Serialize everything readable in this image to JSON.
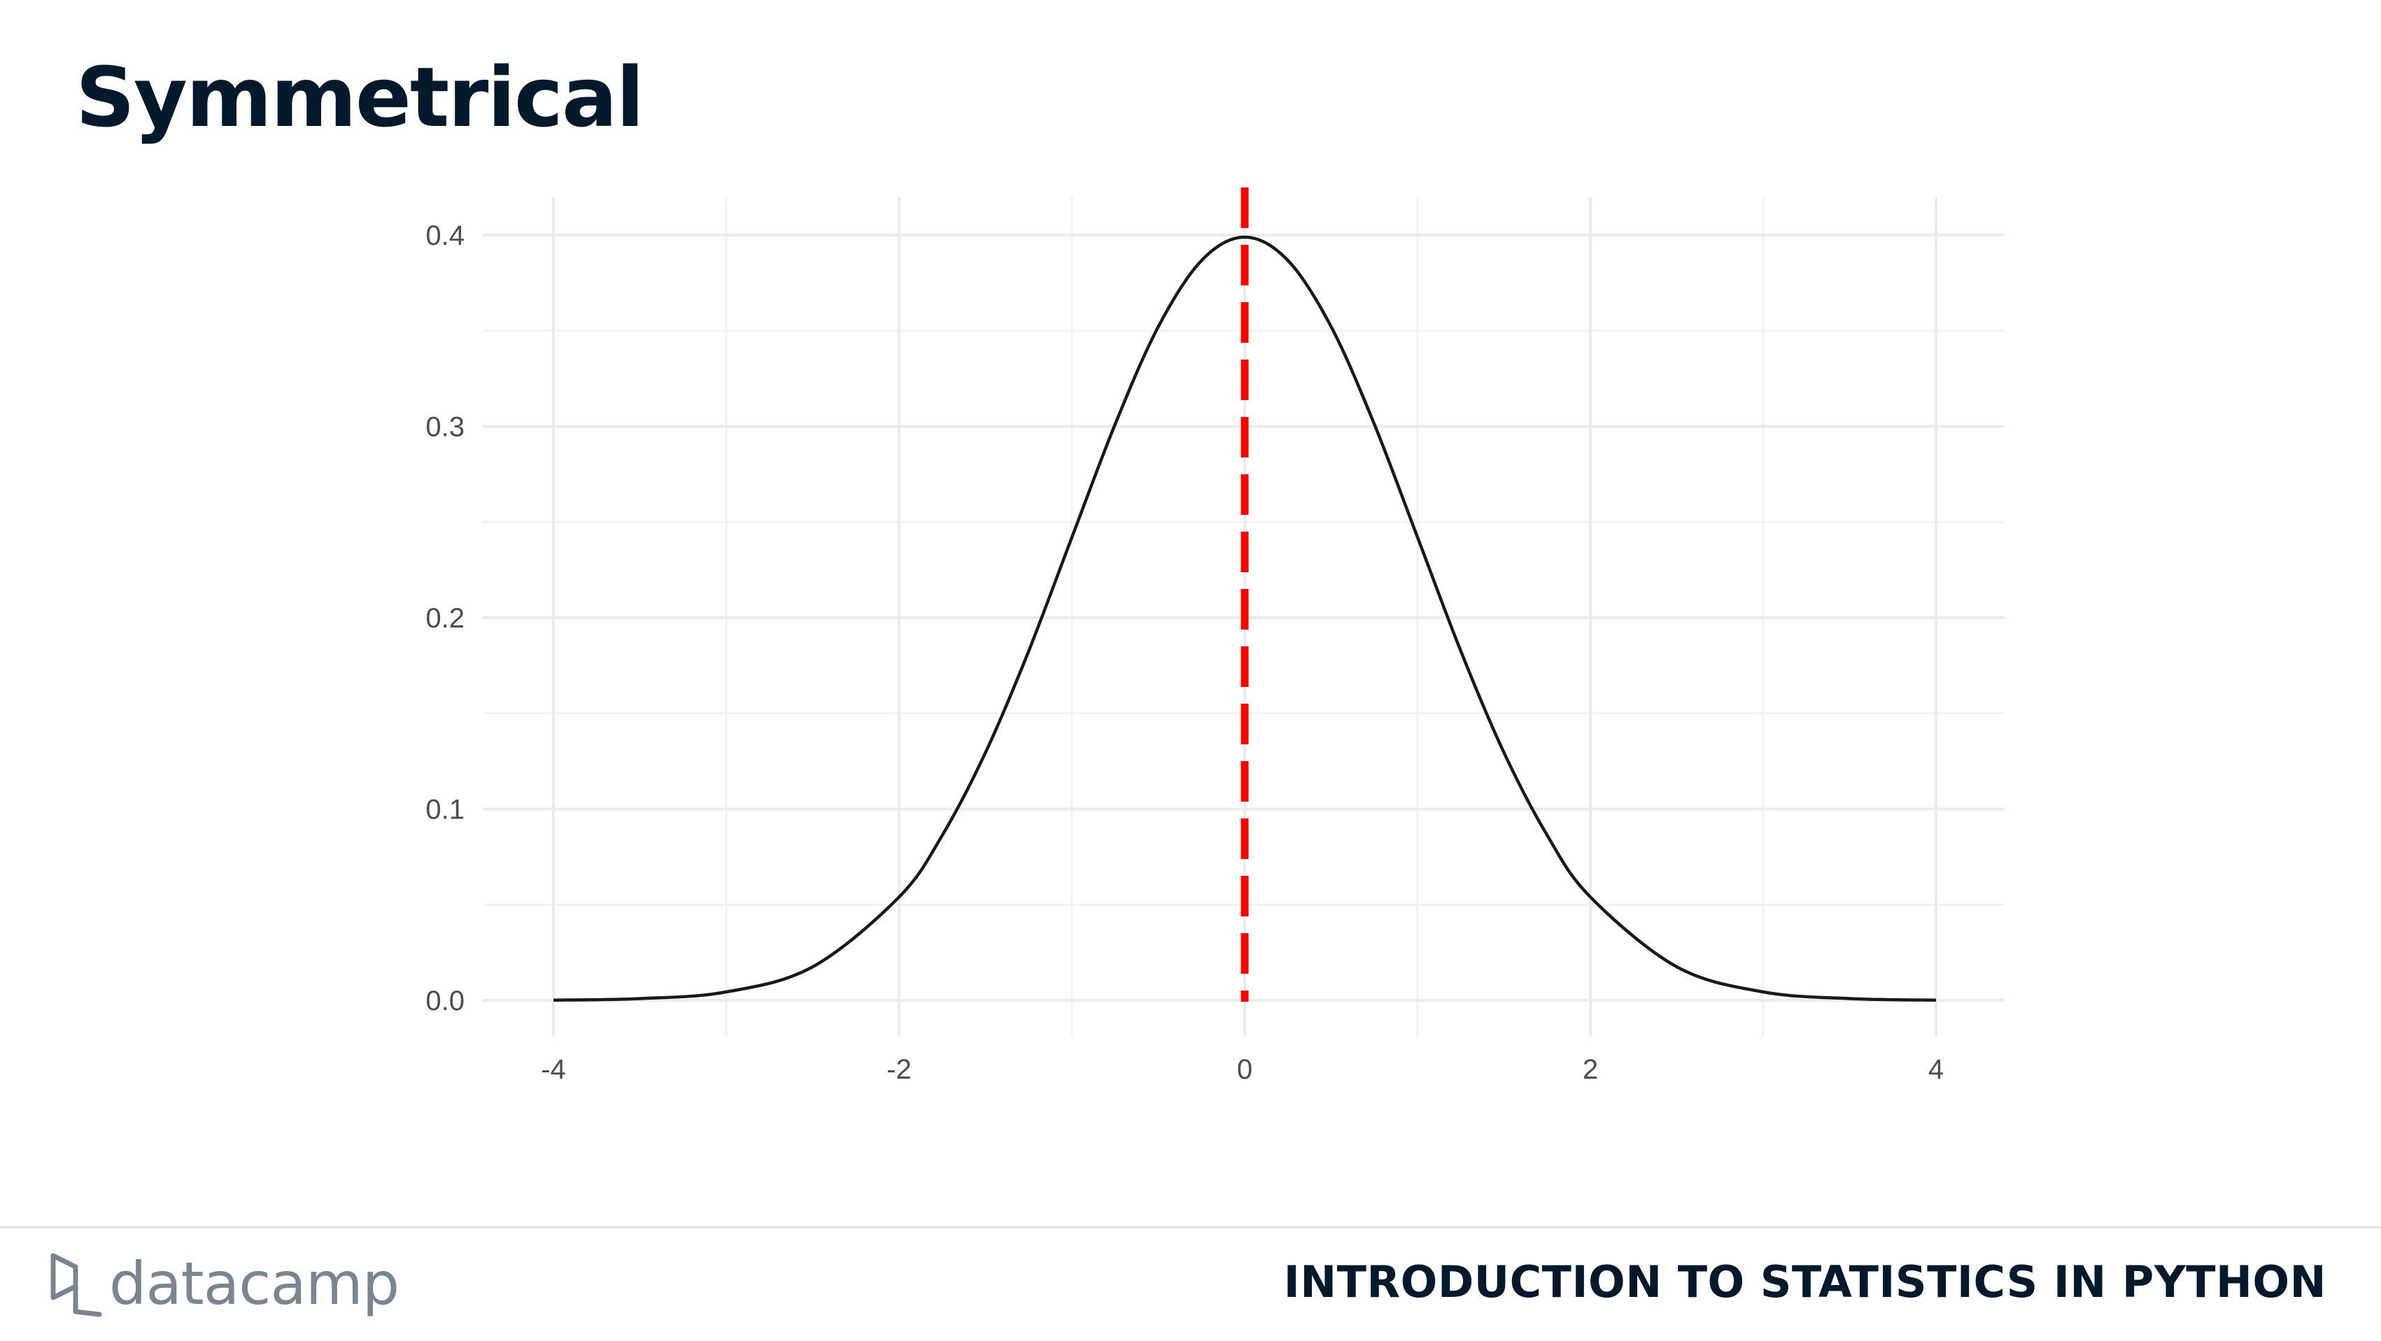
{
  "slide": {
    "title": "Symmetrical"
  },
  "footer": {
    "brand": "datacamp",
    "course_title": "INTRODUCTION TO STATISTICS IN PYTHON"
  },
  "colors": {
    "title": "#05192d",
    "curve": "#1a1a1a",
    "mean_line": "#ff0000",
    "grid": "#ebebeb",
    "brand_gray": "#7b8590"
  },
  "chart_data": {
    "type": "line",
    "title": "",
    "xlabel": "",
    "ylabel": "",
    "xlim": [
      -4,
      4
    ],
    "ylim": [
      0,
      0.4
    ],
    "x_ticks": [
      -4,
      -2,
      0,
      2,
      4
    ],
    "x_tick_labels": [
      "-4",
      "-2",
      "0",
      "2",
      "4"
    ],
    "y_ticks": [
      0.0,
      0.1,
      0.2,
      0.3,
      0.4
    ],
    "y_tick_labels": [
      "0.0",
      "0.1",
      "0.2",
      "0.3",
      "0.4"
    ],
    "grid": true,
    "series": [
      {
        "x": [
          -4,
          -3.5,
          -3,
          -2.5,
          -2,
          -1.75,
          -1.5,
          -1.25,
          -1,
          -0.75,
          -0.5,
          -0.25,
          0,
          0.25,
          0.5,
          0.75,
          1,
          1.25,
          1.5,
          1.75,
          2,
          2.5,
          3,
          3.5,
          4
        ],
        "values": [
          0.0001,
          0.0009,
          0.0044,
          0.0175,
          0.054,
          0.0863,
          0.1295,
          0.1826,
          0.242,
          0.3011,
          0.3521,
          0.3867,
          0.3989,
          0.3867,
          0.3521,
          0.3011,
          0.242,
          0.1826,
          0.1295,
          0.0863,
          0.054,
          0.0175,
          0.0044,
          0.0009,
          0.0001
        ]
      }
    ],
    "annotations": [
      {
        "type": "vertical-dashed-line",
        "x": 0,
        "color": "#ff0000"
      }
    ]
  }
}
